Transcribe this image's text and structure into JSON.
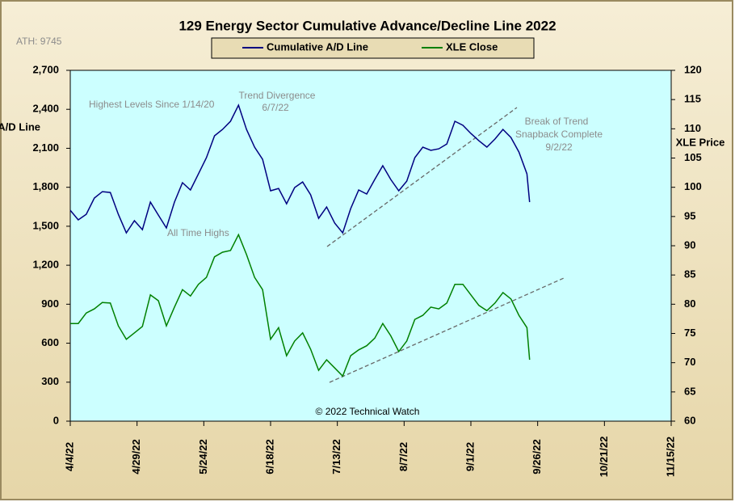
{
  "chart_data": {
    "type": "line",
    "title": "129 Energy Sector Cumulative Advance/Decline Line 2022",
    "y_label": "A/D Line",
    "y2_label": "XLE Price",
    "annotations": [
      "ATH: 9745",
      "Highest Levels Since 1/14/20",
      "Trend Divergence",
      "6/7/22",
      "All Time Highs",
      "Break of Trend",
      "Snapback Complete",
      "9/2/22",
      "© 2022 Technical Watch"
    ],
    "x": [
      "2022-04-04",
      "2022-04-07",
      "2022-04-10",
      "2022-04-13",
      "2022-04-16",
      "2022-04-19",
      "2022-04-22",
      "2022-04-25",
      "2022-04-28",
      "2022-05-01",
      "2022-05-04",
      "2022-05-07",
      "2022-05-10",
      "2022-05-13",
      "2022-05-16",
      "2022-05-19",
      "2022-05-22",
      "2022-05-25",
      "2022-05-28",
      "2022-05-31",
      "2022-06-03",
      "2022-06-06",
      "2022-06-09",
      "2022-06-12",
      "2022-06-15",
      "2022-06-18",
      "2022-06-21",
      "2022-06-24",
      "2022-06-27",
      "2022-06-30",
      "2022-07-03",
      "2022-07-06",
      "2022-07-09",
      "2022-07-12",
      "2022-07-15",
      "2022-07-18",
      "2022-07-21",
      "2022-07-24",
      "2022-07-27",
      "2022-07-30",
      "2022-08-02",
      "2022-08-05",
      "2022-08-08",
      "2022-08-11",
      "2022-08-14",
      "2022-08-17",
      "2022-08-20",
      "2022-08-23",
      "2022-08-26",
      "2022-08-29",
      "2022-09-01",
      "2022-09-04",
      "2022-09-07",
      "2022-09-10",
      "2022-09-13",
      "2022-09-16",
      "2022-09-19",
      "2022-09-22",
      "2022-09-23"
    ],
    "series": [
      {
        "name": "Cumulative A/D Line",
        "color": "#000080",
        "values": [
          1623,
          1549,
          1592,
          1717,
          1766,
          1760,
          1592,
          1449,
          1543,
          1474,
          1686,
          1586,
          1487,
          1686,
          1835,
          1779,
          1903,
          2028,
          2196,
          2245,
          2308,
          2432,
          2245,
          2109,
          2015,
          1773,
          1791,
          1673,
          1798,
          1841,
          1742,
          1561,
          1648,
          1524,
          1449,
          1636,
          1779,
          1748,
          1860,
          1966,
          1860,
          1773,
          1847,
          2028,
          2109,
          2084,
          2096,
          2133,
          2308,
          2277,
          2214,
          2158,
          2109,
          2171,
          2245,
          2183,
          2071,
          1903,
          1686
        ]
      },
      {
        "name": "XLE Close",
        "color": "#008000",
        "axis": "y2",
        "values": [
          76.7,
          76.7,
          78.5,
          79.2,
          80.3,
          80.2,
          76.3,
          74.0,
          75.1,
          76.2,
          81.6,
          80.6,
          76.3,
          79.5,
          82.5,
          81.4,
          83.4,
          84.6,
          88.1,
          88.9,
          89.2,
          91.9,
          88.5,
          84.6,
          82.5,
          74.0,
          76.0,
          71.2,
          73.7,
          75.1,
          72.3,
          68.7,
          70.5,
          69.1,
          67.7,
          71.2,
          72.2,
          72.9,
          74.2,
          76.7,
          74.6,
          71.9,
          73.7,
          77.4,
          78.1,
          79.5,
          79.2,
          80.2,
          83.4,
          83.4,
          81.6,
          79.8,
          78.9,
          80.2,
          82.0,
          80.9,
          78.1,
          76.0,
          70.5
        ]
      }
    ],
    "xlim": [
      "2022-04-04",
      "2022-11-15"
    ],
    "xticks": [
      {
        "value": "2022-04-04",
        "label": "4/4/22"
      },
      {
        "value": "2022-04-29",
        "label": "4/29/22"
      },
      {
        "value": "2022-05-24",
        "label": "5/24/22"
      },
      {
        "value": "2022-06-18",
        "label": "6/18/22"
      },
      {
        "value": "2022-07-13",
        "label": "7/13/22"
      },
      {
        "value": "2022-08-07",
        "label": "8/7/22"
      },
      {
        "value": "2022-09-01",
        "label": "9/1/22"
      },
      {
        "value": "2022-09-26",
        "label": "9/26/22"
      },
      {
        "value": "2022-10-21",
        "label": "10/21/22"
      },
      {
        "value": "2022-11-15",
        "label": "11/15/22"
      }
    ],
    "ylim": [
      0,
      2700
    ],
    "yticks": [
      0,
      300,
      600,
      900,
      {
        "value": 1200,
        "label": "1,200"
      },
      {
        "value": 1500,
        "label": "1,500"
      },
      {
        "value": 1800,
        "label": "1,800"
      },
      {
        "value": 2100,
        "label": "2,100"
      },
      {
        "value": 2400,
        "label": "2,400"
      },
      {
        "value": 2700,
        "label": "2,700"
      }
    ],
    "y2lim": [
      60,
      120
    ],
    "y2ticks": [
      60,
      65,
      70,
      75,
      80,
      85,
      90,
      95,
      100,
      105,
      110,
      115,
      120
    ],
    "grid": false,
    "legend": "top"
  }
}
